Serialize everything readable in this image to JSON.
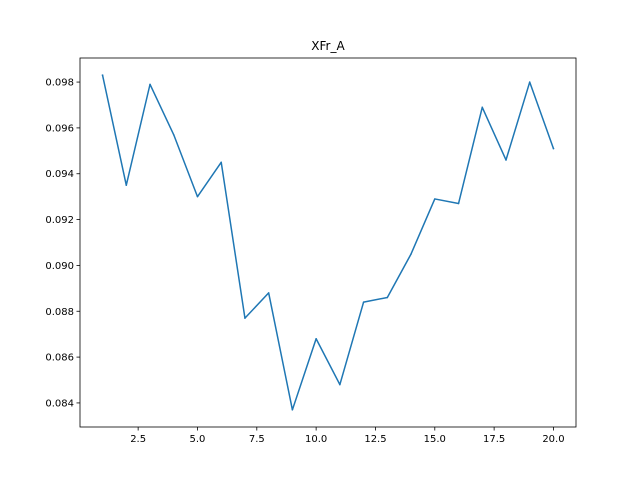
{
  "chart_data": {
    "type": "line",
    "title": "XFr_A",
    "xlabel": "",
    "ylabel": "",
    "xlim": [
      0.05,
      20.95
    ],
    "ylim": [
      0.08295,
      0.09905
    ],
    "x_ticks": [
      2.5,
      5.0,
      7.5,
      10.0,
      12.5,
      15.0,
      17.5,
      20.0
    ],
    "x_tick_labels": [
      "2.5",
      "5.0",
      "7.5",
      "10.0",
      "12.5",
      "15.0",
      "17.5",
      "20.0"
    ],
    "y_ticks": [
      0.084,
      0.086,
      0.088,
      0.09,
      0.092,
      0.094,
      0.096,
      0.098
    ],
    "y_tick_labels": [
      "0.084",
      "0.086",
      "0.088",
      "0.090",
      "0.092",
      "0.094",
      "0.096",
      "0.098"
    ],
    "grid": false,
    "legend": "none",
    "series": [
      {
        "color": "#1f77b4",
        "x": [
          1,
          2,
          3,
          4,
          5,
          6,
          7,
          8,
          9,
          10,
          11,
          12,
          13,
          14,
          15,
          16,
          17,
          18,
          19,
          20
        ],
        "y": [
          0.0983,
          0.0935,
          0.0979,
          0.0957,
          0.093,
          0.0945,
          0.0877,
          0.0888,
          0.0837,
          0.0868,
          0.0848,
          0.0884,
          0.0886,
          0.0905,
          0.0929,
          0.0927,
          0.0969,
          0.0946,
          0.098,
          0.0951
        ]
      }
    ]
  }
}
